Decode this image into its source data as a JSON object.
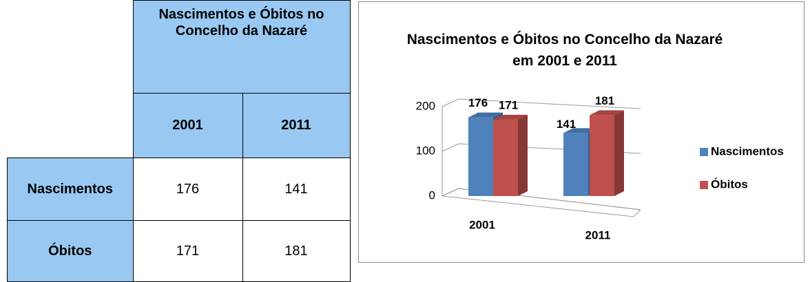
{
  "table": {
    "title": "Nascimentos e Óbitos no Concelho da Nazaré",
    "columns": [
      "2001",
      "2011"
    ],
    "rows": [
      {
        "label": "Nascimentos",
        "values": [
          176,
          141
        ]
      },
      {
        "label": "Óbitos",
        "values": [
          171,
          181
        ]
      }
    ]
  },
  "chart_data": {
    "type": "bar",
    "title": "Nascimentos e Óbitos no Concelho da Nazaré em 2001 e 2011",
    "categories": [
      "2001",
      "2011"
    ],
    "series": [
      {
        "name": "Nascimentos",
        "color": "#4f81bd",
        "values": [
          176,
          141
        ]
      },
      {
        "name": "Óbitos",
        "color": "#c0504d",
        "values": [
          171,
          181
        ]
      }
    ],
    "ylim": [
      0,
      200
    ],
    "yticks": [
      0,
      100,
      200
    ],
    "grid": true,
    "legend": "right"
  }
}
